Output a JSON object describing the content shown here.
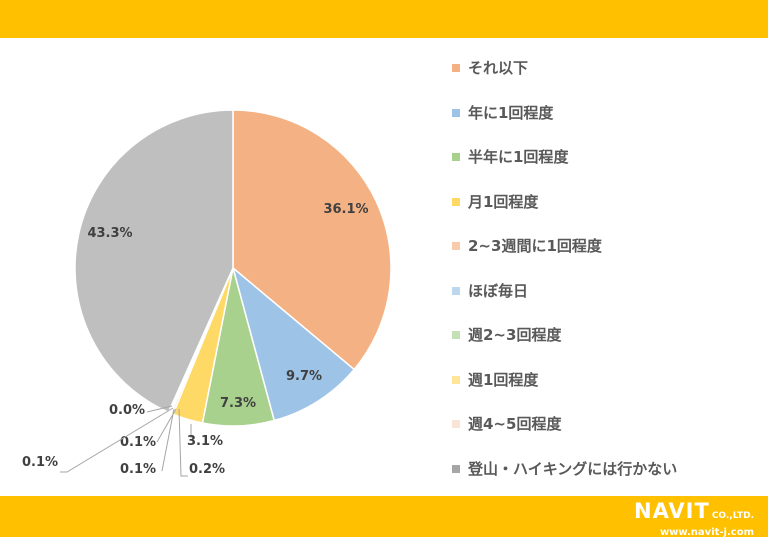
{
  "logo": {
    "brand": "NAVIT",
    "suffix": "CO.,LTD.",
    "url": "www.navit-j.com"
  },
  "chart_data": {
    "type": "pie",
    "title": "",
    "slices": [
      {
        "label": "それ以下",
        "value": 36.1,
        "display": "36.1%",
        "color": "#F4B183",
        "legend_color": "#F4B183"
      },
      {
        "label": "年に1回程度",
        "value": 9.7,
        "display": "9.7%",
        "color": "#9DC3E6",
        "legend_color": "#9DC3E6"
      },
      {
        "label": "半年に1回程度",
        "value": 7.3,
        "display": "7.3%",
        "color": "#A9D18E",
        "legend_color": "#A9D18E"
      },
      {
        "label": "月1回程度",
        "value": 3.1,
        "display": "3.1%",
        "color": "#FFD966",
        "legend_color": "#FFD966"
      },
      {
        "label": "2~3週間に1回程度",
        "value": 0.2,
        "display": "0.2%",
        "color": "#F8CBAD",
        "legend_color": "#F8CBAD"
      },
      {
        "label": "ほぼ毎日",
        "value": 0.1,
        "display": "0.1%",
        "color": "#BDD7EE",
        "legend_color": "#BDD7EE"
      },
      {
        "label": "週2~3回程度",
        "value": 0.1,
        "display": "0.1%",
        "color": "#C5E0B4",
        "legend_color": "#C5E0B4"
      },
      {
        "label": "週1回程度",
        "value": 0.1,
        "display": "0.1%",
        "color": "#FFE699",
        "legend_color": "#FFE699"
      },
      {
        "label": "週4~5回程度",
        "value": 0.0,
        "display": "0.0%",
        "color": "#FBE5D6",
        "legend_color": "#FBE5D6"
      },
      {
        "label": "登山・ハイキングには行かない",
        "value": 43.3,
        "display": "43.3%",
        "color": "#BFBFBF",
        "legend_color": "#A6A6A6"
      }
    ],
    "legend_position": "right",
    "label_color": "#404040"
  }
}
